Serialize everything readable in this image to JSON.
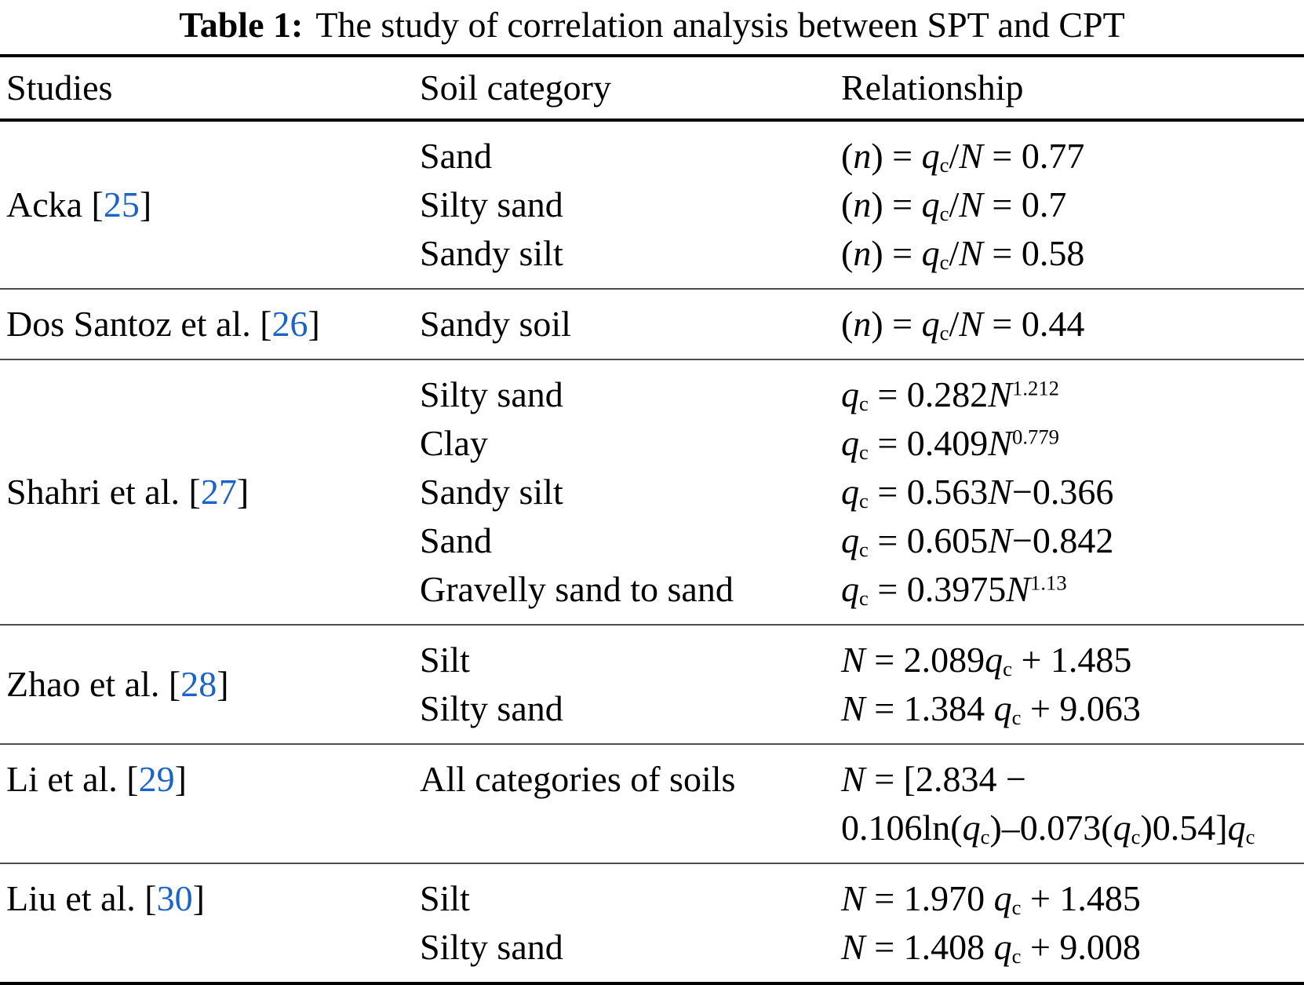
{
  "title": {
    "label": "Table 1:",
    "text": "The study of correlation analysis between SPT and CPT"
  },
  "columns": {
    "studies": "Studies",
    "soil": "Soil category",
    "relationship": "Relationship"
  },
  "colors": {
    "citation": "#1a63c9",
    "text": "#000000",
    "rule": "#000000"
  },
  "sections": [
    {
      "study_pre": "Acka [",
      "ref": "25",
      "study_post": "]",
      "rows": [
        {
          "soil": "Sand",
          "rel": "(*n*) = *q*_c_/*N* = 0.77"
        },
        {
          "soil": "Silty sand",
          "rel": "(*n*) = *q*_c_/*N* = 0.7"
        },
        {
          "soil": "Sandy silt",
          "rel": "(*n*) = *q*_c_/*N* = 0.58"
        }
      ]
    },
    {
      "study_pre": "Dos Santoz et al. [",
      "ref": "26",
      "study_post": "]",
      "rows": [
        {
          "soil": "Sandy soil",
          "rel": "(*n*) = *q*_c_/*N* = 0.44"
        }
      ]
    },
    {
      "study_pre": "Shahri et al. [",
      "ref": "27",
      "study_post": "]",
      "rows": [
        {
          "soil": "Silty sand",
          "rel": "*q*_c_ = 0.282*N*^1.212^"
        },
        {
          "soil": "Clay",
          "rel": "*q*_c_ = 0.409*N*^0.779^"
        },
        {
          "soil": "Sandy silt",
          "rel": "*q*_c_ = 0.563*N*−0.366"
        },
        {
          "soil": "Sand",
          "rel": "*q*_c_ = 0.605*N*−0.842"
        },
        {
          "soil": "Gravelly sand to sand",
          "rel": "*q*_c_ = 0.3975*N*^1.13^"
        }
      ]
    },
    {
      "study_pre": "Zhao et al. [",
      "ref": "28",
      "study_post": "]",
      "rows": [
        {
          "soil": "Silt",
          "rel": "*N* = 2.089*q*_c_ + 1.485"
        },
        {
          "soil": "Silty sand",
          "rel": "*N* = 1.384 *q*_c_ + 9.063"
        }
      ]
    },
    {
      "study_pre": "Li et al. [",
      "ref": "29",
      "study_post": "]",
      "align": "top",
      "rows": [
        {
          "soil": "All categories of soils",
          "rel": "*N* = [2.834 −\n0.106ln(*q*_c_)–0.073(*q*_c_)0.54]*q*_c_"
        }
      ]
    },
    {
      "study_pre": "Liu et al. [",
      "ref": "30",
      "study_post": "]",
      "align": "top",
      "rows": [
        {
          "soil": "Silt",
          "rel": "*N* = 1.970 *q*_c_ + 1.485"
        },
        {
          "soil": "Silty sand",
          "rel": "*N* = 1.408 *q*_c_ + 9.008"
        }
      ]
    }
  ]
}
